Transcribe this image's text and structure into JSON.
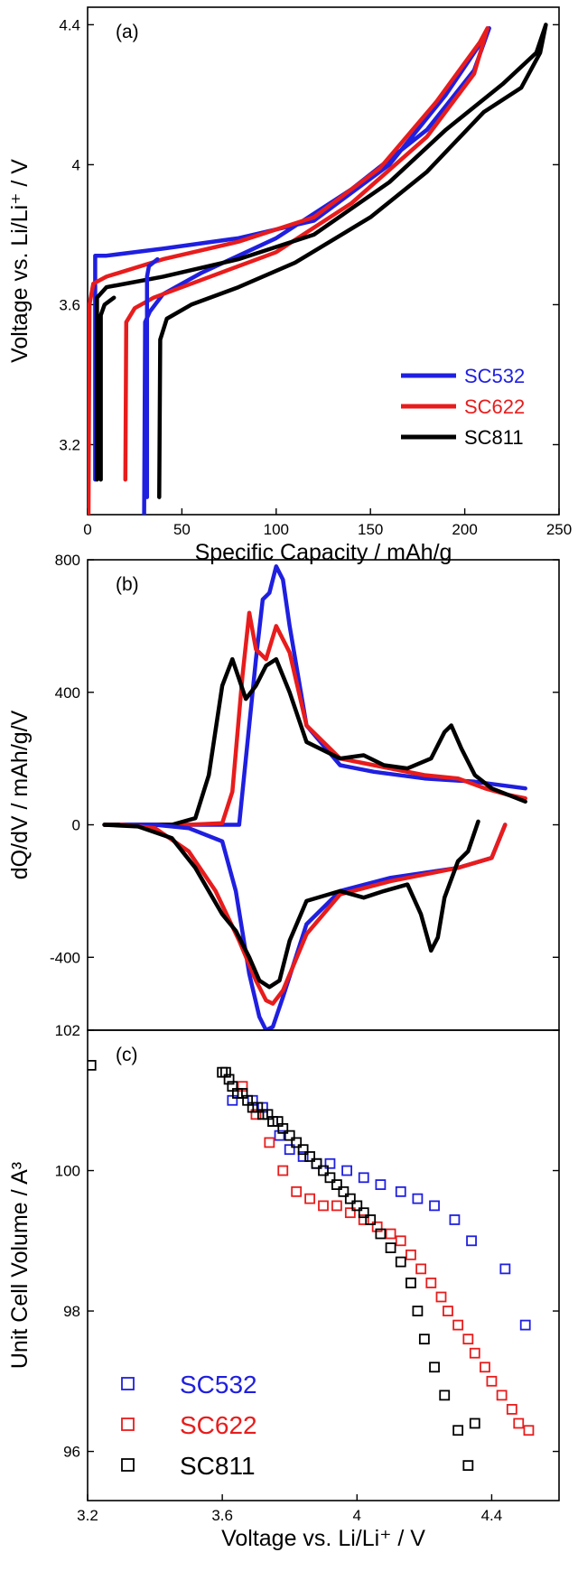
{
  "colors": {
    "SC532": "#1f1fe0",
    "SC622": "#e81c1c",
    "SC811": "#000000"
  },
  "chart_data": [
    {
      "panel": "(a)",
      "type": "line",
      "xlabel": "Specific Capacity / mAh/g",
      "ylabel": "Voltage vs. Li/Li⁺ / V",
      "xlim": [
        0,
        250
      ],
      "ylim": [
        3.0,
        4.45
      ],
      "xticks": [
        0,
        50,
        100,
        150,
        200,
        250
      ],
      "yticks": [
        3.2,
        3.6,
        4,
        4.4
      ],
      "xtick_labels": [
        "0",
        "50",
        "100",
        "150",
        "200",
        "250"
      ],
      "ytick_labels": [
        "3.2",
        "3.6",
        "4",
        "4.4"
      ],
      "legend_position": "bottom-right",
      "series": [
        {
          "name": "SC532",
          "color": "#1f1fe0",
          "x": [
            30,
            30.5,
            33,
            40,
            60,
            100,
            140,
            180,
            205,
            213,
            213,
            210,
            190,
            160,
            120,
            80,
            40,
            10,
            4,
            4
          ],
          "y": [
            3.0,
            3.55,
            3.58,
            3.63,
            3.69,
            3.79,
            3.93,
            4.1,
            4.27,
            4.39,
            4.39,
            4.36,
            4.2,
            4.0,
            3.84,
            3.79,
            3.76,
            3.74,
            3.74,
            3.1
          ]
        },
        {
          "name": "SC622",
          "color": "#e81c1c",
          "x": [
            20,
            20.5,
            25,
            35,
            60,
            100,
            140,
            180,
            205,
            212,
            212,
            208,
            185,
            155,
            120,
            80,
            40,
            10,
            3,
            1,
            0.5
          ],
          "y": [
            3.1,
            3.55,
            3.59,
            3.62,
            3.67,
            3.75,
            3.89,
            4.08,
            4.26,
            4.39,
            4.39,
            4.35,
            4.18,
            3.99,
            3.85,
            3.78,
            3.73,
            3.68,
            3.66,
            3.6,
            3.0
          ]
        },
        {
          "name": "SC811",
          "color": "#000000",
          "x": [
            38,
            38.5,
            42,
            55,
            80,
            110,
            150,
            180,
            210,
            230,
            240,
            243,
            243,
            238,
            220,
            190,
            160,
            120,
            80,
            40,
            10,
            5,
            5
          ],
          "y": [
            3.05,
            3.5,
            3.56,
            3.6,
            3.65,
            3.72,
            3.85,
            3.98,
            4.15,
            4.22,
            4.32,
            4.4,
            4.4,
            4.32,
            4.23,
            4.1,
            3.95,
            3.8,
            3.73,
            3.68,
            3.65,
            3.62,
            3.1
          ]
        },
        {
          "name": "",
          "color": "#1f1fe0",
          "x": [
            31.5,
            31.5,
            32.5,
            37
          ],
          "y": [
            3.05,
            3.68,
            3.71,
            3.73
          ]
        },
        {
          "name": "",
          "color": "#000000",
          "x": [
            7,
            7,
            9,
            14
          ],
          "y": [
            3.1,
            3.57,
            3.6,
            3.62
          ]
        }
      ]
    },
    {
      "panel": "(b)",
      "type": "line",
      "xlabel": "",
      "ylabel": "dQ/dV / mAh/g/V",
      "xlim": [
        3.2,
        4.6
      ],
      "ylim": [
        -620,
        800
      ],
      "yticks": [
        -400,
        0,
        400,
        800
      ],
      "ytick_labels": [
        "-400",
        "0",
        "400",
        "800"
      ],
      "series": [
        {
          "name": "SC532",
          "color": "#1f1fe0",
          "x": [
            3.25,
            3.5,
            3.65,
            3.7,
            3.72,
            3.74,
            3.76,
            3.78,
            3.8,
            3.85,
            3.95,
            4.05,
            4.2,
            4.35,
            4.5
          ],
          "y": [
            0,
            0,
            0,
            500,
            680,
            700,
            780,
            740,
            600,
            300,
            180,
            160,
            140,
            130,
            110
          ]
        },
        {
          "name": "SC622",
          "color": "#e81c1c",
          "x": [
            3.25,
            3.5,
            3.6,
            3.63,
            3.66,
            3.68,
            3.7,
            3.73,
            3.76,
            3.8,
            3.85,
            3.95,
            4.05,
            4.2,
            4.3,
            4.38,
            4.45,
            4.5
          ],
          "y": [
            0,
            0,
            5,
            100,
            450,
            640,
            530,
            500,
            600,
            520,
            300,
            200,
            180,
            150,
            140,
            110,
            90,
            80
          ]
        },
        {
          "name": "SC811",
          "color": "#000000",
          "x": [
            3.25,
            3.45,
            3.52,
            3.56,
            3.6,
            3.63,
            3.67,
            3.7,
            3.73,
            3.76,
            3.8,
            3.85,
            3.95,
            4.02,
            4.08,
            4.15,
            4.22,
            4.26,
            4.28,
            4.31,
            4.35,
            4.4,
            4.5
          ],
          "y": [
            0,
            0,
            20,
            150,
            420,
            500,
            380,
            420,
            480,
            500,
            400,
            250,
            200,
            210,
            180,
            170,
            200,
            280,
            300,
            230,
            150,
            110,
            70
          ]
        },
        {
          "name": "SC532",
          "color": "#1f1fe0",
          "x": [
            4.44,
            4.4,
            4.3,
            4.1,
            3.95,
            3.85,
            3.78,
            3.75,
            3.73,
            3.71,
            3.68,
            3.64,
            3.6,
            3.5,
            3.4,
            3.3
          ],
          "y": [
            0,
            -100,
            -130,
            -160,
            -200,
            -300,
            -520,
            -610,
            -620,
            -580,
            -450,
            -200,
            -50,
            -10,
            0,
            0
          ]
        },
        {
          "name": "SC622",
          "color": "#e81c1c",
          "x": [
            4.44,
            4.4,
            4.3,
            4.1,
            3.95,
            3.85,
            3.78,
            3.75,
            3.73,
            3.7,
            3.65,
            3.58,
            3.5,
            3.4,
            3.3
          ],
          "y": [
            0,
            -100,
            -130,
            -170,
            -210,
            -330,
            -500,
            -540,
            -530,
            -470,
            -350,
            -200,
            -80,
            -10,
            0
          ]
        },
        {
          "name": "SC811",
          "color": "#000000",
          "x": [
            4.36,
            4.33,
            4.3,
            4.26,
            4.24,
            4.22,
            4.19,
            4.15,
            4.08,
            4.02,
            3.95,
            3.85,
            3.8,
            3.77,
            3.74,
            3.71,
            3.68,
            3.64,
            3.6,
            3.52,
            3.45,
            3.35,
            3.25
          ],
          "y": [
            10,
            -80,
            -110,
            -220,
            -340,
            -380,
            -270,
            -180,
            -200,
            -220,
            -200,
            -230,
            -350,
            -470,
            -490,
            -470,
            -400,
            -320,
            -270,
            -130,
            -40,
            -5,
            0
          ]
        }
      ]
    },
    {
      "panel": "(c)",
      "type": "scatter",
      "xlabel": "Voltage vs. Li/Li⁺ / V",
      "ylabel": "Unit Cell Volume / A³",
      "xlim": [
        3.2,
        4.6
      ],
      "ylim": [
        95.3,
        102
      ],
      "xticks": [
        3.2,
        3.6,
        4,
        4.4
      ],
      "xtick_labels": [
        "3.2",
        "3.6",
        "4",
        "4.4"
      ],
      "yticks": [
        96,
        98,
        100,
        102
      ],
      "ytick_labels": [
        "96",
        "98",
        "100",
        "102"
      ],
      "legend_position": "bottom-left",
      "series": [
        {
          "name": "SC532",
          "color": "#1f1fe0",
          "x": [
            3.63,
            3.69,
            3.72,
            3.75,
            3.77,
            3.8,
            3.84,
            3.88,
            3.92,
            3.97,
            4.02,
            4.07,
            4.13,
            4.18,
            4.23,
            4.29,
            4.34,
            4.44,
            4.5
          ],
          "y": [
            101.0,
            101.0,
            100.9,
            100.7,
            100.5,
            100.3,
            100.2,
            100.1,
            100.1,
            100.0,
            99.9,
            99.8,
            99.7,
            99.6,
            99.5,
            99.3,
            99.0,
            98.6,
            97.8
          ]
        },
        {
          "name": "SC622",
          "color": "#e81c1c",
          "x": [
            3.66,
            3.7,
            3.74,
            3.78,
            3.82,
            3.86,
            3.9,
            3.94,
            3.98,
            4.02,
            4.06,
            4.1,
            4.13,
            4.16,
            4.19,
            4.22,
            4.25,
            4.27,
            4.3,
            4.33,
            4.35,
            4.38,
            4.4,
            4.43,
            4.46,
            4.48,
            4.51
          ],
          "y": [
            101.2,
            100.8,
            100.4,
            100.0,
            99.7,
            99.6,
            99.5,
            99.5,
            99.4,
            99.3,
            99.2,
            99.1,
            99.0,
            98.8,
            98.6,
            98.4,
            98.2,
            98.0,
            97.8,
            97.6,
            97.4,
            97.2,
            97.0,
            96.8,
            96.6,
            96.4,
            96.3
          ]
        },
        {
          "name": "SC811",
          "color": "#000000",
          "x": [
            3.21,
            3.6,
            3.61,
            3.62,
            3.63,
            3.645,
            3.66,
            3.675,
            3.69,
            3.705,
            3.72,
            3.735,
            3.75,
            3.765,
            3.78,
            3.8,
            3.82,
            3.84,
            3.86,
            3.88,
            3.9,
            3.92,
            3.94,
            3.96,
            3.98,
            4.0,
            4.02,
            4.04,
            4.07,
            4.1,
            4.13,
            4.16,
            4.18,
            4.2,
            4.23,
            4.26,
            4.3,
            4.33,
            4.35
          ],
          "y": [
            101.5,
            101.4,
            101.4,
            101.3,
            101.2,
            101.1,
            101.1,
            101.0,
            100.9,
            100.9,
            100.8,
            100.8,
            100.7,
            100.7,
            100.6,
            100.5,
            100.4,
            100.3,
            100.2,
            100.1,
            100.0,
            99.9,
            99.8,
            99.7,
            99.6,
            99.5,
            99.4,
            99.3,
            99.1,
            98.9,
            98.7,
            98.4,
            98.0,
            97.6,
            97.2,
            96.8,
            96.3,
            95.8,
            96.4
          ]
        }
      ]
    }
  ]
}
